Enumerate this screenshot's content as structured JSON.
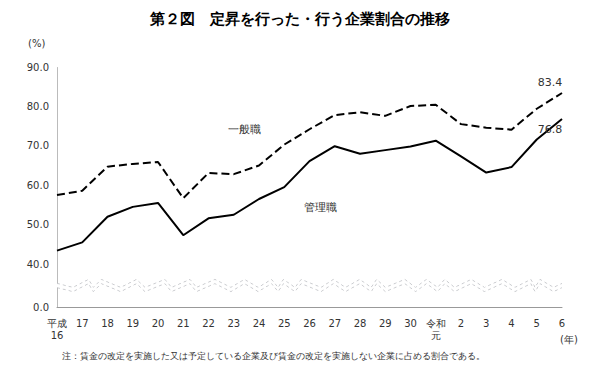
{
  "chart_data": {
    "type": "line",
    "title": "第２図　定昇を行った・行う企業割合の推移",
    "ylabel": "(%)",
    "xlabel": "(年)",
    "note": "注：賃金の改定を実施した又は予定している企業及び賃金の改定を実施しない企業に占める割合である。",
    "categories": [
      "平成\n16",
      "17",
      "18",
      "19",
      "20",
      "21",
      "22",
      "23",
      "24",
      "25",
      "26",
      "27",
      "28",
      "29",
      "30",
      "令和\n元",
      "2",
      "3",
      "4",
      "5",
      "6"
    ],
    "series": [
      {
        "name": "一般職",
        "color": "#000000",
        "line_style": "dashed",
        "values": [
          57.5,
          58.6,
          64.7,
          65.4,
          65.9,
          56.7,
          63.1,
          62.8,
          65.0,
          70.3,
          74.2,
          77.8,
          78.5,
          77.6,
          80.1,
          80.4,
          75.5,
          74.6,
          74.1,
          79.4,
          83.4
        ]
      },
      {
        "name": "管理職",
        "color": "#000000",
        "line_style": "solid",
        "values": [
          43.4,
          45.5,
          52.0,
          54.5,
          55.5,
          47.3,
          51.6,
          52.5,
          56.5,
          59.5,
          66.1,
          69.9,
          68.0,
          68.9,
          69.8,
          71.3,
          67.3,
          63.2,
          64.6,
          71.6,
          76.8
        ]
      }
    ],
    "ylim": [
      0,
      90
    ],
    "yticks": [
      {
        "value": 0,
        "label": "0.0"
      },
      {
        "value": 40,
        "label": "40.0"
      },
      {
        "value": 50,
        "label": "50.0"
      },
      {
        "value": 60,
        "label": "60.0"
      },
      {
        "value": 70,
        "label": "70.0"
      },
      {
        "value": 80,
        "label": "80.0"
      },
      {
        "value": 90,
        "label": "90.0"
      }
    ],
    "grid": false
  }
}
